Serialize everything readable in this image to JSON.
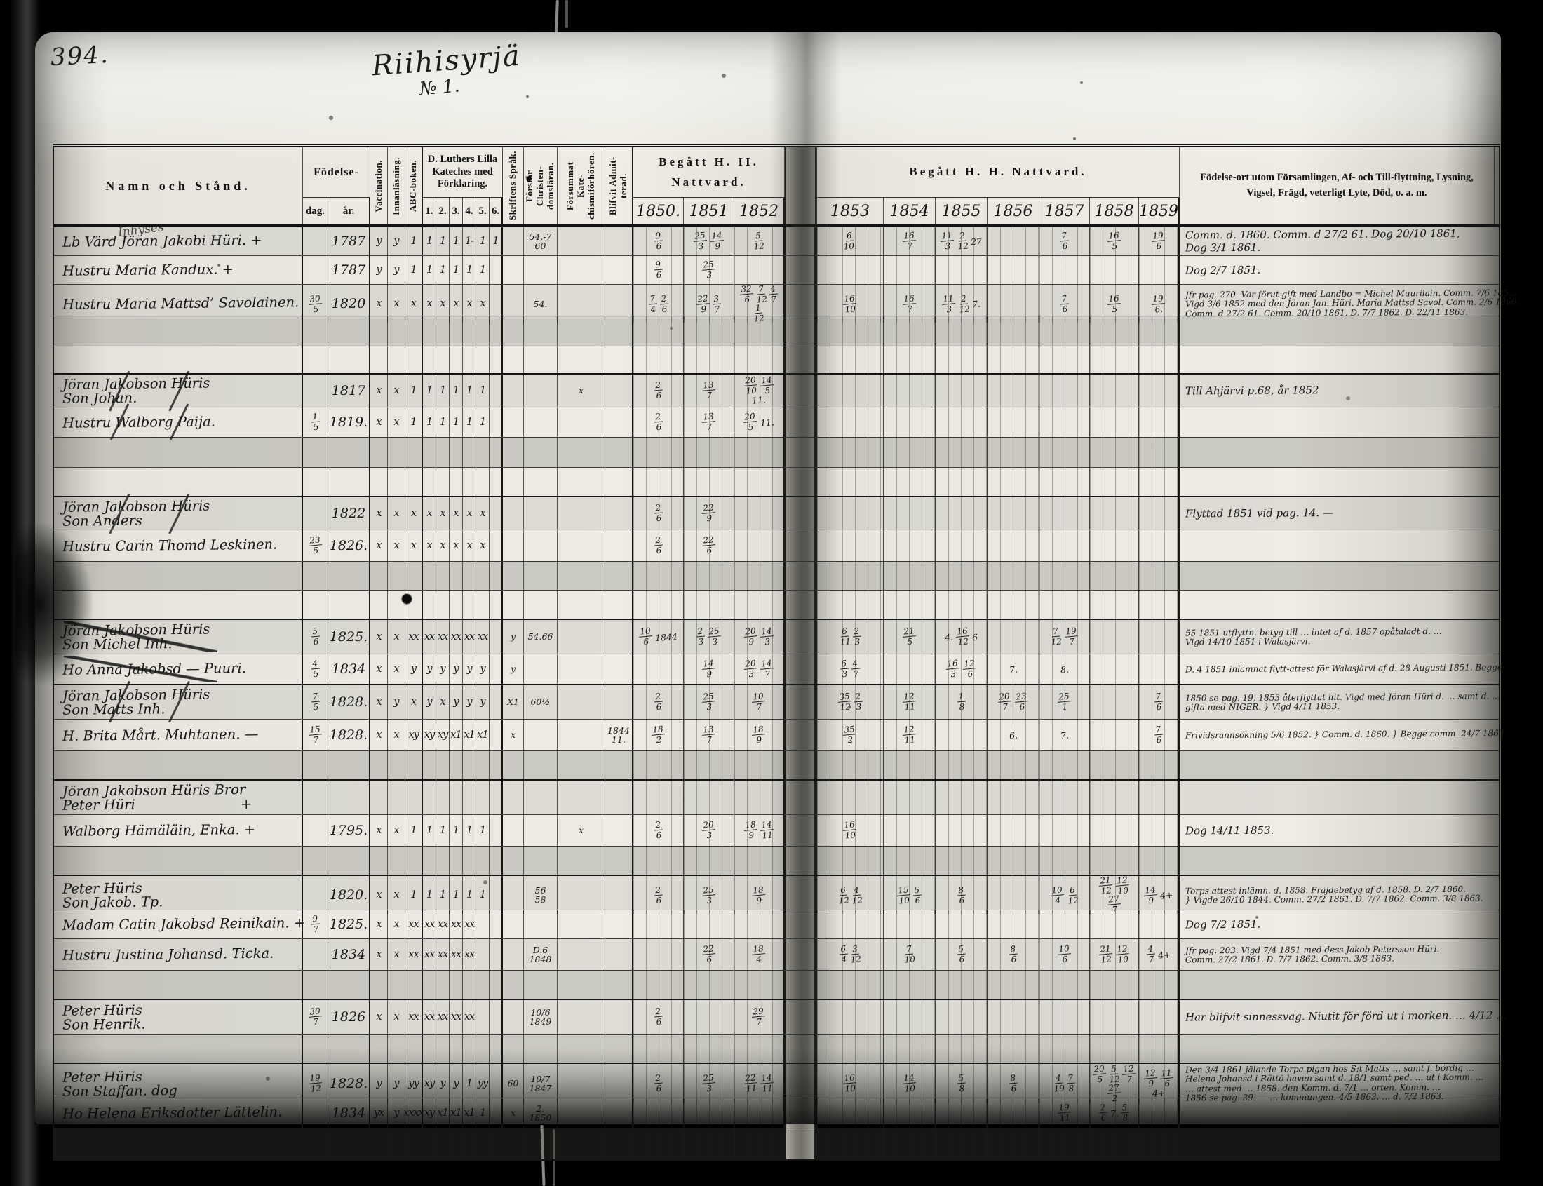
{
  "page": {
    "number": "394.",
    "title": "Riihisyrjä",
    "subtitle": "№ 1.",
    "category_note": "Inhyses"
  },
  "header": {
    "name": "Namn och Stånd.",
    "birth": "Födelse-",
    "birth_day": "dag.",
    "birth_year": "år.",
    "v_vacc": "Vaccination.",
    "v_innan": "Innanläsning.",
    "v_abc": "ABC-boken.",
    "katches": "D. Luthers Lilla Kateches med Förklaring.",
    "kat_cols": [
      "1.",
      "2.",
      "3.",
      "4.",
      "5.",
      "6."
    ],
    "v_skrift": "Skriftens Språk.",
    "v_forstar": "Förstår Christen- domsläran.",
    "v_forsummat": "Försummat Kate- chismiförhören.",
    "v_blifvit": "Blifvit Admit- terad.",
    "nattvard_left": "Begått H. II. Nattvard.",
    "years_left": [
      "1850.",
      "1851",
      "1852"
    ],
    "nattvard_right": "Begått  H.  H.  Nattvard.",
    "years_right": [
      "1853",
      "1854",
      "1855",
      "1856",
      "1857",
      "1858",
      "1859"
    ],
    "remarks_line1": "Födelse-ort utom Församlingen, Af- och Till-flyttning, Lysning,",
    "remarks_line2": "Vigsel, Frägd, veterligt Lyte, Död, o. a. m."
  },
  "rows": [
    {
      "h": 40,
      "g": 1,
      "bg": "a",
      "n": [
        "Lb Värd Jöran Jakobi Hüri. +"
      ],
      "ar": "1787",
      "m": [
        "y",
        "y",
        "1",
        "1",
        "1",
        "1",
        "1-",
        "1",
        "1"
      ],
      "fo": "54.-7 60",
      "y": [
        "9/6",
        "25/3 14/9",
        "5/12",
        "6/10.",
        "16/7",
        "11/3 2/12 27",
        "",
        "7/6",
        "16/5",
        "19/6"
      ],
      "an": [
        "Comm. d. 1860. Comm. d 27/2 61.  Dog 20/10 1861,",
        "Dog 3/1 1861."
      ]
    },
    {
      "h": 40,
      "bg": "",
      "n": [
        "Hustru Maria Kandux. +"
      ],
      "ar": "1787",
      "m": [
        "y",
        "y",
        "1",
        "1",
        "1",
        "1",
        "1",
        "1",
        ""
      ],
      "y": [
        "9/6",
        "25/3",
        "",
        "",
        "",
        "",
        "",
        "",
        "",
        ""
      ],
      "an": [
        "Dog 2/7 1851."
      ]
    },
    {
      "h": 44,
      "bg": "a",
      "n": [
        "Hustru Maria Mattsd’ Savolainen."
      ],
      "dag": "30/5",
      "ar": "1820",
      "m": [
        "x",
        "x",
        "x",
        "x",
        "x",
        "x",
        "x",
        "x",
        ""
      ],
      "fo": "54.",
      "y": [
        "7/4 2/6",
        "22/9 3/7",
        "32/6 7/12 4/7 1/12",
        "16/10",
        "16/7",
        "11/3 2/12 7.",
        "",
        "7/6",
        "16/5",
        "19/6."
      ],
      "sm": 1,
      "an": [
        "Jfr pag. 270. Var förut gift med Landbo = Michel Muurilain. Comm. 7/6 185…",
        "Vigd 3/6 1852 med den Jöran Jan. Hüri. Maria Mattsd Savol. Comm. 2/6 1860.",
        "Comm. d 27/2 61. Comm. 20/10 1861. D. 7/7 1862. D. 22/11 1863."
      ]
    },
    {
      "h": 42,
      "bg": "b",
      "n": []
    },
    {
      "h": 38,
      "bg": "",
      "n": []
    },
    {
      "h": 46,
      "g": 1,
      "bg": "a",
      "sl": 1,
      "n": [
        "Jöran Jakobson Hüris",
        "Son Johan."
      ],
      "ar": "1817",
      "m": [
        "x",
        "x",
        "1",
        "1",
        "1",
        "1",
        "1",
        "1",
        ""
      ],
      "su": "x",
      "y": [
        "2/6",
        "13/7",
        "20/10 14/5 11.",
        "",
        "",
        "",
        "",
        "",
        "",
        ""
      ],
      "an": [
        "Till Ahjärvi p.68, år 1852"
      ]
    },
    {
      "h": 42,
      "bg": "",
      "sl": 1,
      "n": [
        "Hustru Walborg Paija."
      ],
      "dag": "1/5",
      "ar": "1819.",
      "m": [
        "x",
        "x",
        "1",
        "1",
        "1",
        "1",
        "1",
        "1",
        ""
      ],
      "y": [
        "2/6",
        "13/7",
        "20/5 11.",
        "",
        "",
        "",
        "",
        "",
        "",
        ""
      ]
    },
    {
      "h": 42,
      "bg": "b",
      "n": []
    },
    {
      "h": 40,
      "bg": "",
      "n": []
    },
    {
      "h": 46,
      "g": 1,
      "bg": "a",
      "sl": 1,
      "n": [
        "Jöran Jakobson Hüris",
        "Son Anders"
      ],
      "ar": "1822",
      "m": [
        "x",
        "x",
        "x",
        "x",
        "x",
        "x",
        "x",
        "x",
        ""
      ],
      "y": [
        "2/6",
        "22/9",
        "",
        "",
        "",
        "",
        "",
        "",
        "",
        ""
      ],
      "an": [
        "Flyttad 1851 vid pag. 14. —"
      ]
    },
    {
      "h": 44,
      "bg": "",
      "n": [
        "Hustru Carin Thomd Leskinen."
      ],
      "dag": "23/5",
      "ar": "1826.",
      "m": [
        "x",
        "x",
        "x",
        "x",
        "x",
        "x",
        "x",
        "x",
        ""
      ],
      "y": [
        "2/6",
        "22/6",
        "",
        "",
        "",
        "",
        "",
        "",
        "",
        ""
      ]
    },
    {
      "h": 40,
      "bg": "b",
      "n": []
    },
    {
      "h": 40,
      "bg": "",
      "n": []
    },
    {
      "h": 48,
      "g": 1,
      "bg": "a",
      "st": 1,
      "n": [
        "Jöran Jakobson Hüris",
        "Son Michel  Inh."
      ],
      "dag": "5/6",
      "ar": "1825.",
      "m": [
        "x",
        "x",
        "xx",
        "xx",
        "xx",
        "xx",
        "xx",
        "xx"
      ],
      "sk": "y",
      "fo": "54.66",
      "y": [
        "10/6 1844",
        "2/3 25/3",
        "20/9 14/3",
        "6/11 2/3",
        "21/5",
        "4. 16/12 6",
        "",
        "7/12 19/7",
        "",
        ""
      ],
      "sm": 1,
      "an": [
        "55 1851 utflyttn.-betyg till … intet af d. 1857 opåtaladt d. …",
        "Vigd 14/10 1851 i Walasjärvi."
      ]
    },
    {
      "h": 42,
      "bg": "",
      "st": 1,
      "n": [
        "Ho Anna Jakobsd — Puuri."
      ],
      "dag": "4/5",
      "ar": "1834",
      "m": [
        "x",
        "x",
        "y",
        "y",
        "y",
        "y",
        "y",
        "y"
      ],
      "sk": "y",
      "y": [
        "",
        "14/9",
        "20/3 14/7",
        "6/3 4/7",
        "",
        "16/3 12/6",
        "7.",
        "8.",
        "",
        ""
      ],
      "sm": 1,
      "an": [
        "D. 4 1851 inlämnat flytt-attest för Walasjärvi af d. 28 Augusti 1851. Begge …"
      ]
    },
    {
      "h": 48,
      "g": 1,
      "bg": "a",
      "sl": 1,
      "n": [
        "Jöran Jakobson Hüris",
        "Son Matts  Inh."
      ],
      "dag": "7/5",
      "ar": "1828.",
      "m": [
        "x",
        "y",
        "x",
        "y",
        "x",
        "y",
        "y",
        "y"
      ],
      "sk": "X1",
      "fo": "60½",
      "y": [
        "2/6",
        "25/3",
        "10/7",
        "35/12 2/3",
        "12/11",
        "1/8",
        "20/7 23/6",
        "25/1",
        "",
        "7/6"
      ],
      "sm": 1,
      "an": [
        "1850 se pag. 19, 1853 återflyttat hit. Vigd med Jöran Hüri d. … samt d. …",
        "gifta med NIGER.  }  Vigd 4/11 1853."
      ]
    },
    {
      "h": 44,
      "bg": "",
      "n": [
        "H. Brita Mårt. Muhtanen.  —"
      ],
      "dag": "15/7",
      "ar": "1828.",
      "m": [
        "x",
        "x",
        "xy",
        "xy",
        "xy",
        "x1",
        "x1",
        "x1"
      ],
      "sk": "x",
      "ad": "1844 11.",
      "y": [
        "18/2",
        "13/7",
        "18/9",
        "35/2",
        "12/11",
        "",
        "6.",
        "7.",
        "",
        "7/6"
      ],
      "sm": 1,
      "an": [
        "Frividsrannsökning 5/6 1852.  }  Comm. d. 1860.  }  Begge comm. 24/7 1863."
      ]
    },
    {
      "h": 40,
      "bg": "b",
      "n": []
    },
    {
      "h": 48,
      "g": 1,
      "bg": "a",
      "n": [
        "Jöran Jakobson Hüris Bror",
        "Peter Hüri"
      ],
      "plus": 1
    },
    {
      "h": 44,
      "bg": "",
      "n": [
        "Walborg Hämäläin, Enka. +"
      ],
      "ar": "1795.",
      "m": [
        "x",
        "x",
        "1",
        "1",
        "1",
        "1",
        "1",
        "1",
        ""
      ],
      "su": "x",
      "y": [
        "2/6",
        "20/3",
        "18/9 14/11",
        "16/10",
        "",
        "",
        "",
        "",
        "",
        ""
      ],
      "an": [
        "Dog 14/11 1853."
      ]
    },
    {
      "h": 40,
      "bg": "b",
      "n": []
    },
    {
      "h": 48,
      "g": 1,
      "bg": "a",
      "n": [
        "Peter Hüris",
        "Son Jakob.  Tp."
      ],
      "ar": "1820.",
      "m": [
        "x",
        "x",
        "1",
        "1",
        "1",
        "1",
        "1",
        "1",
        ""
      ],
      "fo": "56 58",
      "y": [
        "2/6",
        "25/3",
        "18/9",
        "6/12 4/12",
        "15/10 5/6",
        "8/6",
        "",
        "10/4 6/12",
        "21/12 12/10 27/7",
        "14/9 4+"
      ],
      "sm": 1,
      "an": [
        "Torps attest inlämn. d. 1858. Fräjdebetyg af d. 1858. D. 2/7 1860.",
        "}  Vigde 26/10 1844. Comm. 27/2 1861. D. 7/7 1862. Comm. 3/8 1863."
      ]
    },
    {
      "h": 40,
      "bg": "",
      "n": [
        "Madam Catin Jakobsd Reinikain. +"
      ],
      "dag": "9/7",
      "ar": "1825.",
      "m": [
        "x",
        "x",
        "xx",
        "xx",
        "xx",
        "xx",
        "xx",
        ""
      ],
      "an": [
        "Dog 7/2 1851."
      ]
    },
    {
      "h": 44,
      "bg": "a",
      "n": [
        "Hustru Justina Johansd. Ticka."
      ],
      "ar": "1834",
      "m": [
        "x",
        "x",
        "xx",
        "xx",
        "xx",
        "xx",
        "xx",
        ""
      ],
      "fo": "D.6 1848",
      "y": [
        "",
        "22/6",
        "18/4",
        "6/4 3/12",
        "7/10",
        "5/6",
        "8/6",
        "10/6",
        "21/12 12/10",
        "4/7 4+"
      ],
      "sm": 1,
      "an": [
        "Jfr pag. 203. Vigd 7/4 1851 med dess Jakob Petersson Hüri.",
        "Comm. 27/2 1861. D. 7/7 1862. Comm. 3/8 1863."
      ]
    },
    {
      "h": 40,
      "bg": "b",
      "n": []
    },
    {
      "h": 48,
      "g": 1,
      "bg": "a",
      "n": [
        "Peter Hüris",
        "Son Henrik."
      ],
      "dag": "30/7",
      "ar": "1826",
      "m": [
        "x",
        "x",
        "xx",
        "xx",
        "xx",
        "xx",
        "xx",
        ""
      ],
      "fo": "10/6 1849",
      "y": [
        "2/6",
        "",
        "29/7",
        "",
        "",
        "",
        "",
        "",
        "",
        ""
      ],
      "an": [
        "Har blifvit sinnessvag. Niutit för förd ut i morken. … 4/12 …"
      ]
    },
    {
      "h": 40,
      "bg": "b",
      "n": []
    },
    {
      "h": 48,
      "g": 1,
      "bg": "a",
      "n": [
        "Peter Hüris",
        "Son Staffan.  dog"
      ],
      "dag": "19/12",
      "ar": "1828.",
      "m": [
        "y",
        "y",
        "yy",
        "xy",
        "y",
        "y",
        "1",
        "yy"
      ],
      "sk": "60",
      "fo": "10/7 1847",
      "y": [
        "2/6",
        "25/3",
        "22/11 14/11",
        "16/10",
        "14/10",
        "5/8",
        "8/6",
        "4/19 7/8",
        "20/5 5/12 12/7 27/2",
        "12/9 11/6 4+"
      ],
      "sm": 1,
      "an": [
        "Den 3/4 1861 jälande Torpa pigan hos S:t Matts … samt f. bördig …",
        "Helena Johansd i Rättö haven samt d. 18/1 samt ped. … ut i Komm. …",
        "… attest med … 1858. den Komm. d. 7/1 … orten. Komm. …",
        "1856 se pag. 39. —  … kommungen. 4/5 1863.   … d. 7/2 1863."
      ]
    },
    {
      "h": 42,
      "bg": "",
      "n": [
        "Ho Helena Eriksdotter Lättelin."
      ],
      "ar": "1834",
      "m": [
        "yx",
        "y",
        "xxxx",
        "xy",
        "x1",
        "x1",
        "x1",
        "1"
      ],
      "sk": "x",
      "fo": "2. 1850",
      "y": [
        "",
        "",
        "",
        "",
        "",
        "",
        "",
        "19/11",
        "2/6 7. 5/8",
        ""
      ]
    },
    {
      "h": 44,
      "bg": "b",
      "n": []
    }
  ]
}
